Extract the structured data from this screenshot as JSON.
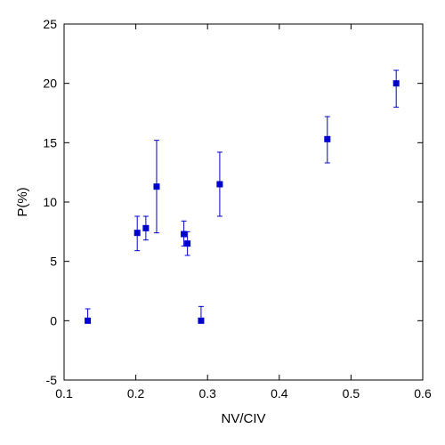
{
  "chart_data": {
    "type": "scatter",
    "xlabel": "NV/CIV",
    "ylabel": "P(%)",
    "xlim": [
      0.1,
      0.6
    ],
    "ylim": [
      -5,
      25
    ],
    "xticks": [
      0.1,
      0.2,
      0.3,
      0.4,
      0.5,
      0.6
    ],
    "yticks": [
      -5,
      0,
      5,
      10,
      15,
      20,
      25
    ],
    "x_tick_labels": [
      "0.1",
      "0.2",
      "0.3",
      "0.4",
      "0.5",
      "0.6"
    ],
    "y_tick_labels": [
      "-5",
      "0",
      "5",
      "10",
      "15",
      "20",
      "25"
    ],
    "grid": false,
    "marker_color": "#0000cc",
    "points": [
      {
        "x": 0.133,
        "y": 0.0,
        "err_low": 0.0,
        "err_high": 1.0
      },
      {
        "x": 0.202,
        "y": 7.4,
        "err_low": 1.5,
        "err_high": 1.4
      },
      {
        "x": 0.214,
        "y": 7.8,
        "err_low": 1.0,
        "err_high": 1.0
      },
      {
        "x": 0.229,
        "y": 11.3,
        "err_low": 3.9,
        "err_high": 3.9
      },
      {
        "x": 0.267,
        "y": 7.3,
        "err_low": 1.0,
        "err_high": 1.1
      },
      {
        "x": 0.272,
        "y": 6.5,
        "err_low": 1.0,
        "err_high": 1.0
      },
      {
        "x": 0.291,
        "y": 0.0,
        "err_low": 0.0,
        "err_high": 1.2
      },
      {
        "x": 0.317,
        "y": 11.5,
        "err_low": 2.7,
        "err_high": 2.7
      },
      {
        "x": 0.467,
        "y": 15.3,
        "err_low": 2.0,
        "err_high": 1.9
      },
      {
        "x": 0.563,
        "y": 20.0,
        "err_low": 2.0,
        "err_high": 1.1
      }
    ]
  }
}
